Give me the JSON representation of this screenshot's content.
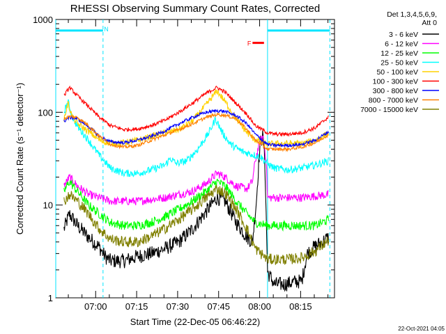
{
  "chart_data": {
    "type": "line",
    "title": "RHESSI Observing Summary Count Rates, Corrected",
    "xlabel": "Start Time (22-Dec-05 06:46:22)",
    "ylabel": "Corrected Count Rate (s⁻¹ detector⁻¹)",
    "timestamp": "22-Oct-2021 04:05",
    "y_scale": "log",
    "ylim": [
      1,
      1000
    ],
    "xlim_minutes": [
      0,
      102
    ],
    "x_ticks": [
      {
        "label": "07:00",
        "m": 14.6
      },
      {
        "label": "07:15",
        "m": 29.6
      },
      {
        "label": "07:30",
        "m": 44.6
      },
      {
        "label": "07:45",
        "m": 59.6
      },
      {
        "label": "08:00",
        "m": 74.6
      },
      {
        "label": "08:15",
        "m": 89.6
      }
    ],
    "y_ticks": [
      {
        "label": "1",
        "v": 1
      },
      {
        "label": "10",
        "v": 10
      },
      {
        "label": "100",
        "v": 100
      },
      {
        "label": "1000",
        "v": 1000
      }
    ],
    "legend_header": [
      "Det 1,3,4,5,6,9,",
      "Att 0"
    ],
    "annotations": [
      {
        "text": "N",
        "m": 18.5,
        "v": 800,
        "color": "#00e5ff"
      },
      {
        "text": "F",
        "m": 70.8,
        "v": 560,
        "color": "#ff0000"
      }
    ],
    "bars": [
      {
        "name": "night",
        "from_m": 0,
        "to_m": 17.3,
        "v": 760,
        "color": "#00e5ff"
      },
      {
        "name": "night",
        "from_m": 77.5,
        "to_m": 100.3,
        "v": 760,
        "color": "#00e5ff"
      },
      {
        "name": "flare",
        "from_m": 72.0,
        "to_m": 76.2,
        "v": 560,
        "color": "#ff0000"
      }
    ],
    "vlines": [
      {
        "m": 0,
        "style": "solid",
        "color": "#00e5ff"
      },
      {
        "m": 17.3,
        "style": "dashed",
        "color": "#00e5ff"
      },
      {
        "m": 77.5,
        "style": "solid",
        "color": "#00e5ff"
      },
      {
        "m": 100.3,
        "style": "dashed",
        "color": "#00e5ff"
      }
    ],
    "series": [
      {
        "name": "3 - 6 keV",
        "color": "#000000",
        "noise": 0.08,
        "points": [
          [
            3,
            5.5
          ],
          [
            5,
            8
          ],
          [
            8,
            6
          ],
          [
            12,
            4.5
          ],
          [
            16,
            3.5
          ],
          [
            18,
            2.8
          ],
          [
            20,
            2.5
          ],
          [
            25,
            2.5
          ],
          [
            30,
            2.8
          ],
          [
            35,
            3
          ],
          [
            40,
            3.4
          ],
          [
            45,
            4
          ],
          [
            50,
            5.5
          ],
          [
            55,
            8.5
          ],
          [
            59,
            12
          ],
          [
            62,
            11
          ],
          [
            66,
            6.5
          ],
          [
            70,
            4.5
          ],
          [
            72,
            4
          ],
          [
            73.5,
            12
          ],
          [
            74.3,
            30
          ],
          [
            75,
            50
          ],
          [
            75.8,
            55
          ],
          [
            76.5,
            30
          ],
          [
            77.5,
            1.9
          ],
          [
            80,
            1.4
          ],
          [
            84,
            1.4
          ],
          [
            88,
            1.5
          ],
          [
            90,
            1.5
          ],
          [
            92,
            3
          ],
          [
            95,
            3.6
          ],
          [
            100,
            4.5
          ]
        ]
      },
      {
        "name": "6 - 12 keV",
        "color": "#ff00ff",
        "noise": 0.045,
        "points": [
          [
            3,
            16
          ],
          [
            5,
            20
          ],
          [
            8,
            16
          ],
          [
            12,
            13
          ],
          [
            16,
            12
          ],
          [
            20,
            11
          ],
          [
            25,
            11
          ],
          [
            30,
            11
          ],
          [
            35,
            11.5
          ],
          [
            40,
            12
          ],
          [
            45,
            13
          ],
          [
            50,
            14
          ],
          [
            55,
            17
          ],
          [
            59,
            22
          ],
          [
            62,
            20
          ],
          [
            66,
            16
          ],
          [
            70,
            15
          ],
          [
            72,
            18
          ],
          [
            73,
            30
          ],
          [
            74,
            40
          ],
          [
            75,
            50
          ],
          [
            76,
            55
          ],
          [
            77,
            30
          ],
          [
            77.5,
            12
          ],
          [
            80,
            12
          ],
          [
            85,
            12
          ],
          [
            90,
            12
          ],
          [
            95,
            12.5
          ],
          [
            100,
            13
          ]
        ]
      },
      {
        "name": "12 - 25 keV",
        "color": "#00ff00",
        "noise": 0.05,
        "points": [
          [
            3,
            14
          ],
          [
            5,
            18
          ],
          [
            8,
            14
          ],
          [
            12,
            10
          ],
          [
            16,
            8
          ],
          [
            20,
            6.5
          ],
          [
            25,
            6
          ],
          [
            30,
            6
          ],
          [
            35,
            6.5
          ],
          [
            40,
            7.5
          ],
          [
            45,
            9
          ],
          [
            50,
            11
          ],
          [
            55,
            14
          ],
          [
            59,
            18
          ],
          [
            62,
            16
          ],
          [
            66,
            11
          ],
          [
            70,
            8
          ],
          [
            73,
            6.5
          ],
          [
            77.5,
            6
          ],
          [
            80,
            6
          ],
          [
            85,
            6
          ],
          [
            90,
            6
          ],
          [
            95,
            6
          ],
          [
            100,
            7
          ]
        ]
      },
      {
        "name": "25 - 50 keV",
        "color": "#00ffff",
        "noise": 0.04,
        "points": [
          [
            3,
            100
          ],
          [
            4.5,
            130
          ],
          [
            6,
            90
          ],
          [
            8,
            70
          ],
          [
            12,
            50
          ],
          [
            16,
            34
          ],
          [
            20,
            25
          ],
          [
            25,
            22
          ],
          [
            30,
            22
          ],
          [
            35,
            24
          ],
          [
            40,
            27
          ],
          [
            42,
            32
          ],
          [
            44,
            28
          ],
          [
            48,
            30
          ],
          [
            52,
            40
          ],
          [
            56,
            60
          ],
          [
            58.5,
            85
          ],
          [
            61,
            60
          ],
          [
            64,
            45
          ],
          [
            68,
            38
          ],
          [
            72,
            35
          ],
          [
            75,
            33
          ],
          [
            77.5,
            28
          ],
          [
            80,
            25
          ],
          [
            85,
            24
          ],
          [
            90,
            25
          ],
          [
            95,
            27
          ],
          [
            100,
            30
          ]
        ]
      },
      {
        "name": "50 - 100 keV",
        "color": "#ffd200",
        "noise": 0.035,
        "points": [
          [
            3,
            85
          ],
          [
            4.5,
            125
          ],
          [
            6,
            90
          ],
          [
            8,
            75
          ],
          [
            12,
            62
          ],
          [
            16,
            50
          ],
          [
            20,
            46
          ],
          [
            25,
            47
          ],
          [
            30,
            50
          ],
          [
            35,
            55
          ],
          [
            40,
            60
          ],
          [
            45,
            65
          ],
          [
            50,
            80
          ],
          [
            55,
            120
          ],
          [
            59,
            170
          ],
          [
            62,
            130
          ],
          [
            66,
            85
          ],
          [
            70,
            60
          ],
          [
            73,
            50
          ],
          [
            77.5,
            45
          ],
          [
            80,
            46
          ],
          [
            85,
            46
          ],
          [
            90,
            46
          ],
          [
            95,
            50
          ],
          [
            100,
            60
          ]
        ]
      },
      {
        "name": "100 - 300 keV",
        "color": "#ff0000",
        "noise": 0.02,
        "points": [
          [
            3,
            150
          ],
          [
            5,
            185
          ],
          [
            8,
            150
          ],
          [
            12,
            115
          ],
          [
            16,
            88
          ],
          [
            20,
            72
          ],
          [
            25,
            65
          ],
          [
            30,
            66
          ],
          [
            35,
            72
          ],
          [
            40,
            82
          ],
          [
            45,
            100
          ],
          [
            50,
            125
          ],
          [
            55,
            160
          ],
          [
            59,
            185
          ],
          [
            62,
            165
          ],
          [
            66,
            125
          ],
          [
            70,
            95
          ],
          [
            73,
            72
          ],
          [
            77.5,
            60
          ],
          [
            80,
            58
          ],
          [
            85,
            58
          ],
          [
            90,
            60
          ],
          [
            95,
            68
          ],
          [
            100,
            90
          ]
        ]
      },
      {
        "name": "300 - 800 keV",
        "color": "#0000ff",
        "noise": 0.018,
        "points": [
          [
            3,
            80
          ],
          [
            5,
            88
          ],
          [
            8,
            85
          ],
          [
            12,
            70
          ],
          [
            16,
            55
          ],
          [
            20,
            48
          ],
          [
            25,
            47
          ],
          [
            30,
            50
          ],
          [
            35,
            55
          ],
          [
            40,
            63
          ],
          [
            45,
            75
          ],
          [
            50,
            88
          ],
          [
            55,
            100
          ],
          [
            59,
            104
          ],
          [
            62,
            102
          ],
          [
            66,
            92
          ],
          [
            70,
            75
          ],
          [
            73,
            58
          ],
          [
            77.5,
            45
          ],
          [
            80,
            44
          ],
          [
            85,
            44
          ],
          [
            90,
            45
          ],
          [
            95,
            50
          ],
          [
            100,
            62
          ]
        ]
      },
      {
        "name": "800 - 7000 keV",
        "color": "#ff8000",
        "noise": 0.018,
        "points": [
          [
            3,
            85
          ],
          [
            5,
            90
          ],
          [
            8,
            88
          ],
          [
            12,
            72
          ],
          [
            16,
            55
          ],
          [
            20,
            45
          ],
          [
            25,
            42
          ],
          [
            30,
            44
          ],
          [
            35,
            50
          ],
          [
            40,
            57
          ],
          [
            45,
            65
          ],
          [
            50,
            75
          ],
          [
            55,
            88
          ],
          [
            59,
            95
          ],
          [
            62,
            93
          ],
          [
            66,
            85
          ],
          [
            70,
            65
          ],
          [
            73,
            50
          ],
          [
            77.5,
            40
          ],
          [
            80,
            40
          ],
          [
            85,
            40
          ],
          [
            90,
            42
          ],
          [
            95,
            47
          ],
          [
            100,
            58
          ]
        ]
      },
      {
        "name": "7000 - 15000 keV",
        "color": "#808000",
        "noise": 0.06,
        "points": [
          [
            3,
            11
          ],
          [
            5,
            13
          ],
          [
            8,
            11
          ],
          [
            12,
            8
          ],
          [
            16,
            5.5
          ],
          [
            20,
            4.3
          ],
          [
            25,
            4
          ],
          [
            30,
            4
          ],
          [
            35,
            4.6
          ],
          [
            40,
            5.6
          ],
          [
            45,
            7
          ],
          [
            50,
            9
          ],
          [
            55,
            12
          ],
          [
            59,
            15
          ],
          [
            62,
            13.5
          ],
          [
            66,
            9
          ],
          [
            70,
            5.5
          ],
          [
            73,
            3.4
          ],
          [
            77.5,
            2.6
          ],
          [
            80,
            2.6
          ],
          [
            85,
            2.6
          ],
          [
            90,
            2.7
          ],
          [
            95,
            3.2
          ],
          [
            100,
            4.2
          ]
        ]
      }
    ]
  }
}
